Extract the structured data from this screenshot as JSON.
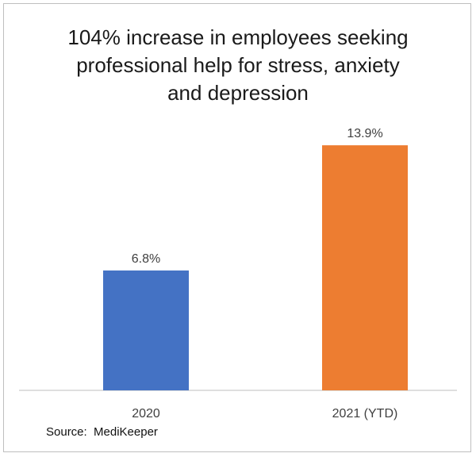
{
  "chart_data": {
    "type": "bar",
    "title_lines": [
      "104% increase in employees seeking",
      "professional help for stress, anxiety",
      "and depression"
    ],
    "categories": [
      "2020",
      "2021 (YTD)"
    ],
    "values": [
      6.8,
      13.9
    ],
    "data_labels": [
      "6.8%",
      "13.9%"
    ],
    "ylim": [
      0,
      14.4
    ],
    "grid": false,
    "legend": "none",
    "colors": [
      "#4472C4",
      "#ED7D31"
    ],
    "xlabel": "",
    "ylabel": ""
  },
  "source": "Source:  MediKeeper"
}
